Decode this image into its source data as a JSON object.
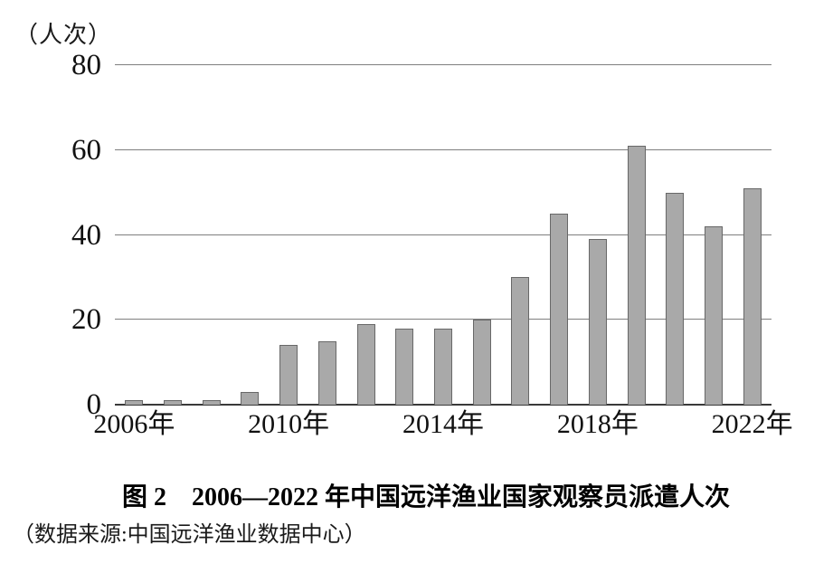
{
  "chart_data": {
    "type": "bar",
    "title": "图 2　2006—2022 年中国远洋渔业国家观察员派遣人次",
    "unit_label": "（人次）",
    "source": "（数据来源:中国远洋渔业数据中心）",
    "categories": [
      "2006年",
      "2007年",
      "2008年",
      "2009年",
      "2010年",
      "2011年",
      "2012年",
      "2013年",
      "2014年",
      "2015年",
      "2016年",
      "2017年",
      "2018年",
      "2019年",
      "2020年",
      "2021年",
      "2022年"
    ],
    "values": [
      1,
      1,
      1,
      3,
      14,
      15,
      19,
      18,
      18,
      20,
      30,
      45,
      39,
      61,
      50,
      42,
      51
    ],
    "x_tick_labels": [
      "2006年",
      "2010年",
      "2014年",
      "2018年",
      "2022年"
    ],
    "x_tick_every": 4,
    "y_ticks": [
      0,
      20,
      40,
      60,
      80
    ],
    "ylim": [
      0,
      80
    ],
    "xlabel": "",
    "ylabel": "人次",
    "grid": true,
    "legend": "none",
    "bar_color": "#a9a9a9",
    "bar_border_color": "#686868",
    "gridline_color": "#7f7f7f",
    "axis_color": "#3a3a3a"
  }
}
